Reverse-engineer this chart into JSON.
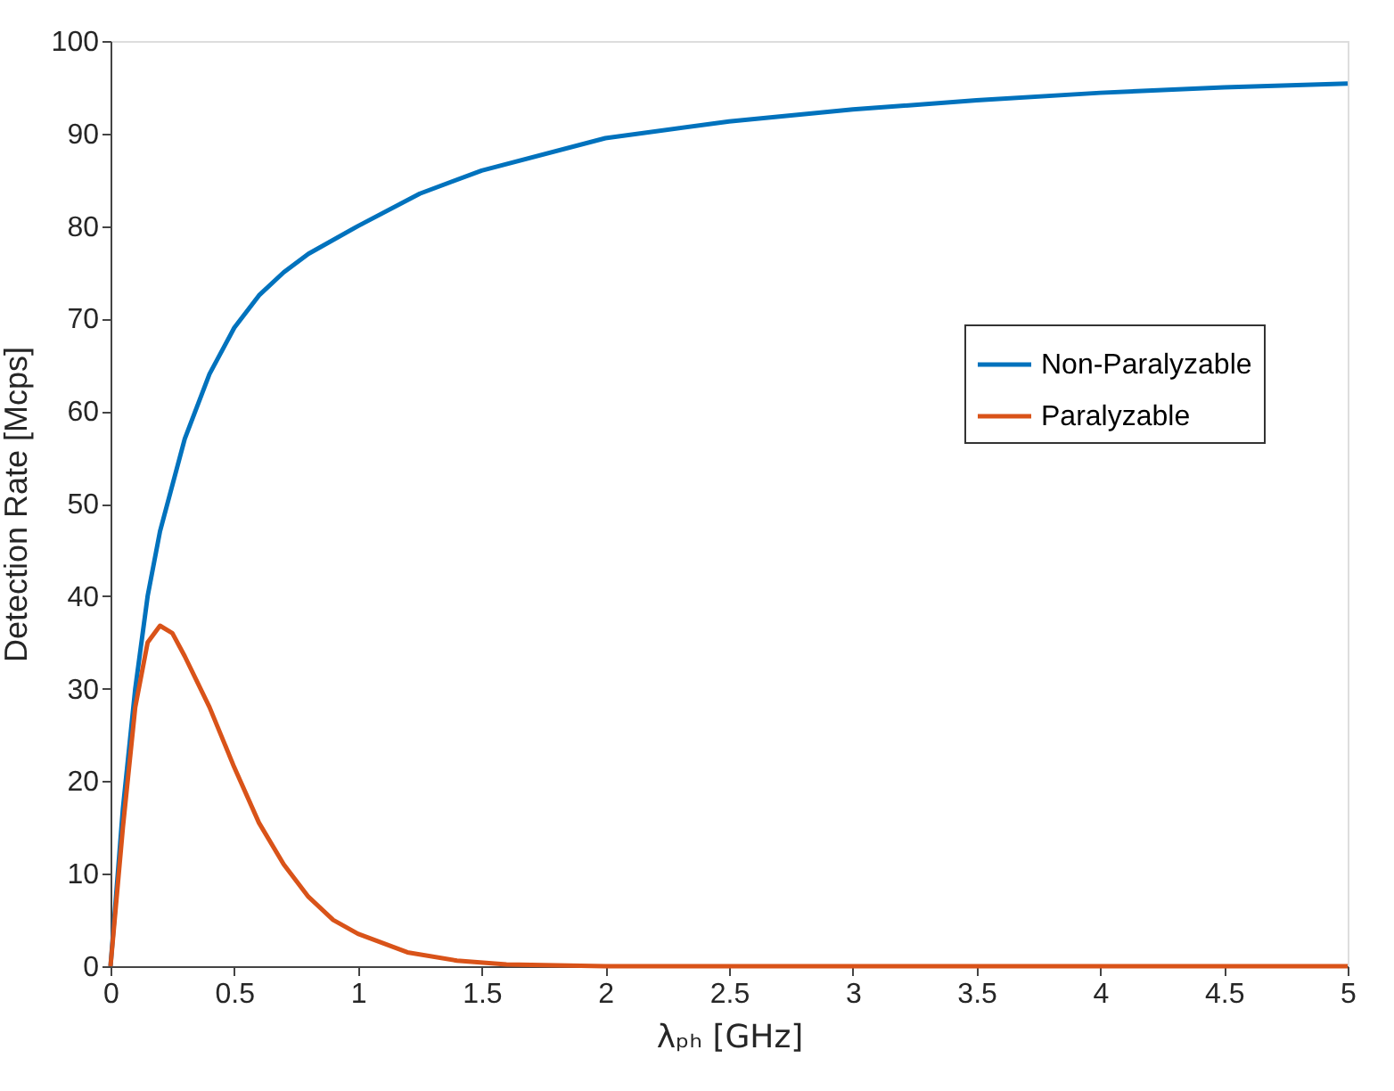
{
  "chart_data": {
    "type": "line",
    "xlabel": "λₚₕ [GHz]",
    "ylabel": "Detection Rate [Mcps]",
    "xlim": [
      0,
      5
    ],
    "xticks": [
      0,
      0.5,
      1,
      1.5,
      2,
      2.5,
      3,
      3.5,
      4,
      4.5,
      5
    ],
    "ylim": [
      0,
      100
    ],
    "yticks": [
      0,
      10,
      20,
      30,
      40,
      50,
      60,
      70,
      80,
      90,
      100
    ],
    "grid": false,
    "legend": "right",
    "line_style": "solid",
    "marker": "none",
    "series": [
      {
        "name": "Non-Paralyzable",
        "color": "#0072bd",
        "x": [
          0,
          0.05,
          0.1,
          0.15,
          0.2,
          0.3,
          0.4,
          0.5,
          0.6,
          0.7,
          0.8,
          1,
          1.25,
          1.5,
          2,
          2.5,
          3,
          3.5,
          4,
          4.5,
          5
        ],
        "values": [
          0,
          17,
          30,
          40,
          47,
          57,
          64,
          69,
          72.5,
          75,
          77,
          80,
          83.5,
          86,
          89.5,
          91.3,
          92.6,
          93.6,
          94.4,
          95,
          95.4
        ]
      },
      {
        "name": "Paralyzable",
        "color": "#d95319",
        "x": [
          0,
          0.05,
          0.1,
          0.15,
          0.2,
          0.25,
          0.3,
          0.4,
          0.5,
          0.6,
          0.7,
          0.8,
          0.9,
          1,
          1.2,
          1.4,
          1.6,
          2,
          3,
          4,
          5
        ],
        "values": [
          0,
          15,
          28,
          35,
          36.8,
          36,
          33.5,
          28,
          21.5,
          15.5,
          11,
          7.5,
          5,
          3.5,
          1.5,
          0.6,
          0.2,
          0,
          0,
          0,
          0
        ]
      }
    ]
  }
}
